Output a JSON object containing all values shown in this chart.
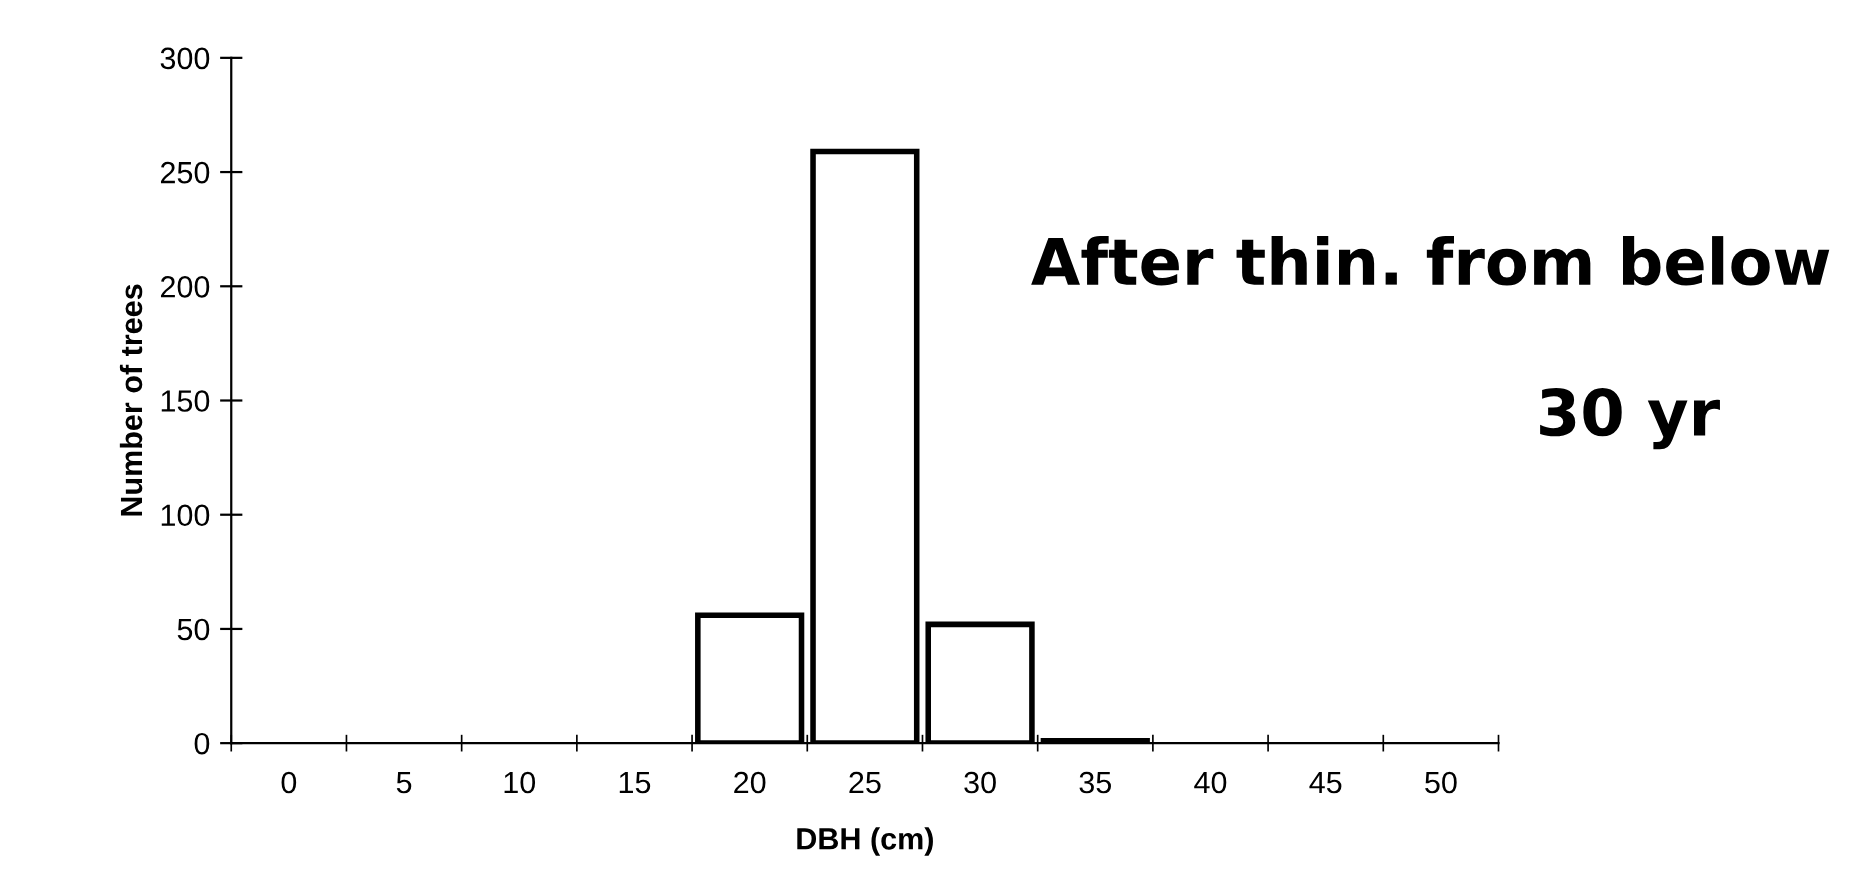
{
  "chart_data": {
    "type": "bar",
    "xlabel": "DBH (cm)",
    "ylabel": "Number of trees",
    "categories": [
      "0",
      "5",
      "10",
      "15",
      "20",
      "25",
      "30",
      "35",
      "40",
      "45",
      "50"
    ],
    "values": [
      0,
      0,
      0,
      0,
      56,
      259,
      52,
      1,
      0,
      0,
      0
    ],
    "color": "#ffffff",
    "ylim": [
      0,
      300
    ],
    "yticks": [
      0,
      50,
      100,
      150,
      200,
      250,
      300
    ],
    "grid": false,
    "legend": false,
    "annotations": [
      "After thin. from below",
      "30 yr"
    ]
  }
}
